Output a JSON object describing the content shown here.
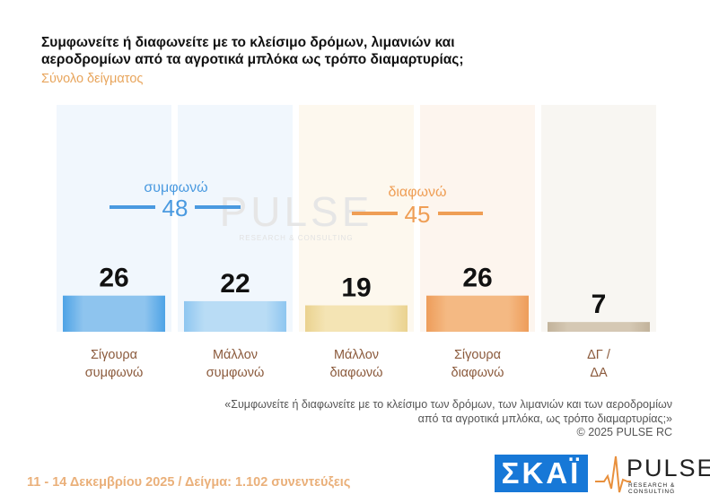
{
  "header": {
    "title": "Συμφωνείτε ή διαφωνείτε με το κλείσιμο δρόμων, λιμανιών και αεροδρομίων από τα αγροτικά μπλόκα ως τρόπο διαμαρτυρίας;",
    "subtitle": "Σύνολο δείγματος"
  },
  "chart_data": {
    "type": "bar",
    "categories": [
      "Σίγουρα συμφωνώ",
      "Μάλλον συμφωνώ",
      "Μάλλον διαφωνώ",
      "Σίγουρα διαφωνώ",
      "ΔΓ / ΔΑ"
    ],
    "category_lines": [
      [
        "Σίγουρα",
        "συμφωνώ"
      ],
      [
        "Μάλλον",
        "συμφωνώ"
      ],
      [
        "Μάλλον",
        "διαφωνώ"
      ],
      [
        "Σίγουρα",
        "διαφωνώ"
      ],
      [
        "ΔΓ /",
        "ΔΑ"
      ]
    ],
    "values": [
      26,
      22,
      19,
      26,
      7
    ],
    "ylim": [
      0,
      100
    ],
    "colors": {
      "bar_fill": [
        "#8ec4ee",
        "#b9dcf5",
        "#f4e4b4",
        "#f4b983",
        "#d5c8b4"
      ],
      "bar_edge": [
        "#4ea3e6",
        "#8ec6f0",
        "#ead28f",
        "#ee9d5a",
        "#c2b39b"
      ],
      "column_bg": [
        "#f1f7fd",
        "#f1f7fd",
        "#fdf8ee",
        "#fdf5ee",
        "#f8f6f2"
      ],
      "agree": "#4a9ae0",
      "disagree": "#ef9e55",
      "category_label": "#8b5a3c",
      "value_label": "#111111"
    },
    "groups": [
      {
        "label": "συμφωνώ",
        "total": "48"
      },
      {
        "label": "διαφωνώ",
        "total": "45"
      }
    ],
    "watermark": {
      "main": "PULSE",
      "sub": "RESEARCH & CONSULTING"
    }
  },
  "note": {
    "quote_line1": "«Συμφωνείτε ή διαφωνείτε με το κλείσιμο των δρόμων, των λιμανιών και των αεροδρομίων",
    "quote_line2": "από τα αγροτικά μπλόκα, ως τρόπο διαμαρτυρίας;»",
    "copyright": "©  2025  PULSE RC"
  },
  "footer": {
    "text": "11 - 14 Δεκεμβρίου 2025  /  Δείγμα:  1.102 συνεντεύξεις"
  },
  "logos": {
    "skai": "ΣΚΑΪ",
    "pulse": "PULSE",
    "pulse_sub": "RESEARCH & CONSULTING"
  }
}
